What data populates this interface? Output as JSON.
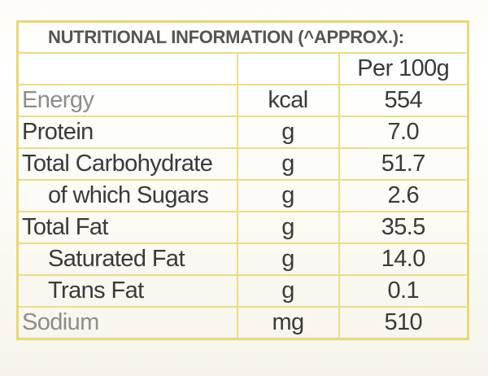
{
  "title": "NUTRITIONAL INFORMATION (^APPROX.):",
  "column_header": "Per 100g",
  "rows": [
    {
      "name": "Energy",
      "unit": "kcal",
      "value": "554"
    },
    {
      "name": "Protein",
      "unit": "g",
      "value": "7.0"
    },
    {
      "name": "Total Carbohydrate",
      "unit": "g",
      "value": "51.7"
    },
    {
      "name": "of which Sugars",
      "unit": "g",
      "value": "2.6"
    },
    {
      "name": "Total Fat",
      "unit": "g",
      "value": "35.5"
    },
    {
      "name": "Saturated Fat",
      "unit": "g",
      "value": "14.0"
    },
    {
      "name": "Trans Fat",
      "unit": "g",
      "value": "0.1"
    },
    {
      "name": "Sodium",
      "unit": "mg",
      "value": "510"
    }
  ],
  "colors": {
    "border": "#ecdc86",
    "text": "#3a3a3a"
  }
}
